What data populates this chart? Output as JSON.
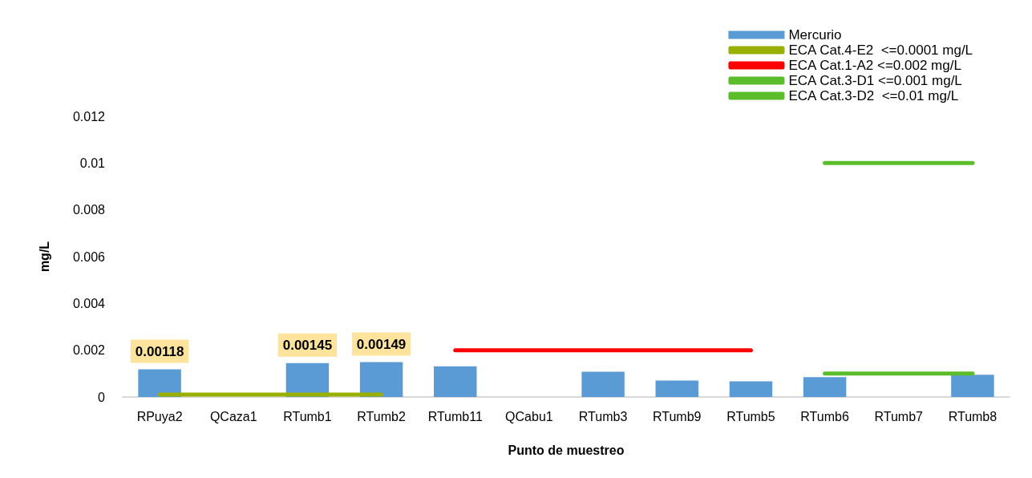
{
  "chart_data": {
    "type": "bar",
    "xlabel": "Punto de muestreo",
    "ylabel": "mg/L",
    "categories": [
      "RPuya2",
      "QCaza1",
      "RTumb1",
      "RTumb2",
      "RTumb11",
      "QCabu1",
      "RTumb3",
      "RTumb9",
      "RTumb5",
      "RTumb6",
      "RTumb7",
      "RTumb8"
    ],
    "series": [
      {
        "name": "Mercurio",
        "color": "#5b9bd5",
        "values": [
          0.00118,
          null,
          0.00145,
          0.00149,
          0.00131,
          null,
          0.00108,
          0.0007,
          0.00067,
          0.00085,
          null,
          0.00095
        ],
        "value_labels": [
          "0.00118",
          null,
          "0.00145",
          "0.00149",
          null,
          null,
          null,
          null,
          null,
          null,
          null,
          null
        ]
      },
      {
        "name": "ECA Cat.4-E2  <=0.0001 mg/L",
        "type": "line",
        "color": "#99b000",
        "values": [
          0.0001,
          0.0001,
          0.0001,
          0.0001,
          null,
          null,
          null,
          null,
          null,
          null,
          null,
          null
        ]
      },
      {
        "name": "ECA Cat.1-A2 <=0.002 mg/L",
        "type": "line",
        "color": "#ff0000",
        "values": [
          null,
          null,
          null,
          null,
          0.002,
          0.002,
          0.002,
          0.002,
          0.002,
          null,
          null,
          null
        ]
      },
      {
        "name": "ECA Cat.3-D1 <=0.001 mg/L",
        "type": "line",
        "color": "#5bbd2b",
        "values": [
          null,
          null,
          null,
          null,
          null,
          null,
          null,
          null,
          null,
          0.001,
          0.001,
          0.001
        ]
      },
      {
        "name": "ECA Cat.3-D2  <=0.01 mg/L",
        "type": "line",
        "color": "#5bbd2b",
        "values": [
          null,
          null,
          null,
          null,
          null,
          null,
          null,
          null,
          null,
          0.01,
          0.01,
          0.01
        ]
      }
    ],
    "ylim": [
      0,
      0.012
    ],
    "yticks": [
      0,
      0.002,
      0.004,
      0.006,
      0.008,
      0.01,
      0.012
    ],
    "grid": false,
    "legend": "top right",
    "marker": "none",
    "line_style": "solid"
  }
}
